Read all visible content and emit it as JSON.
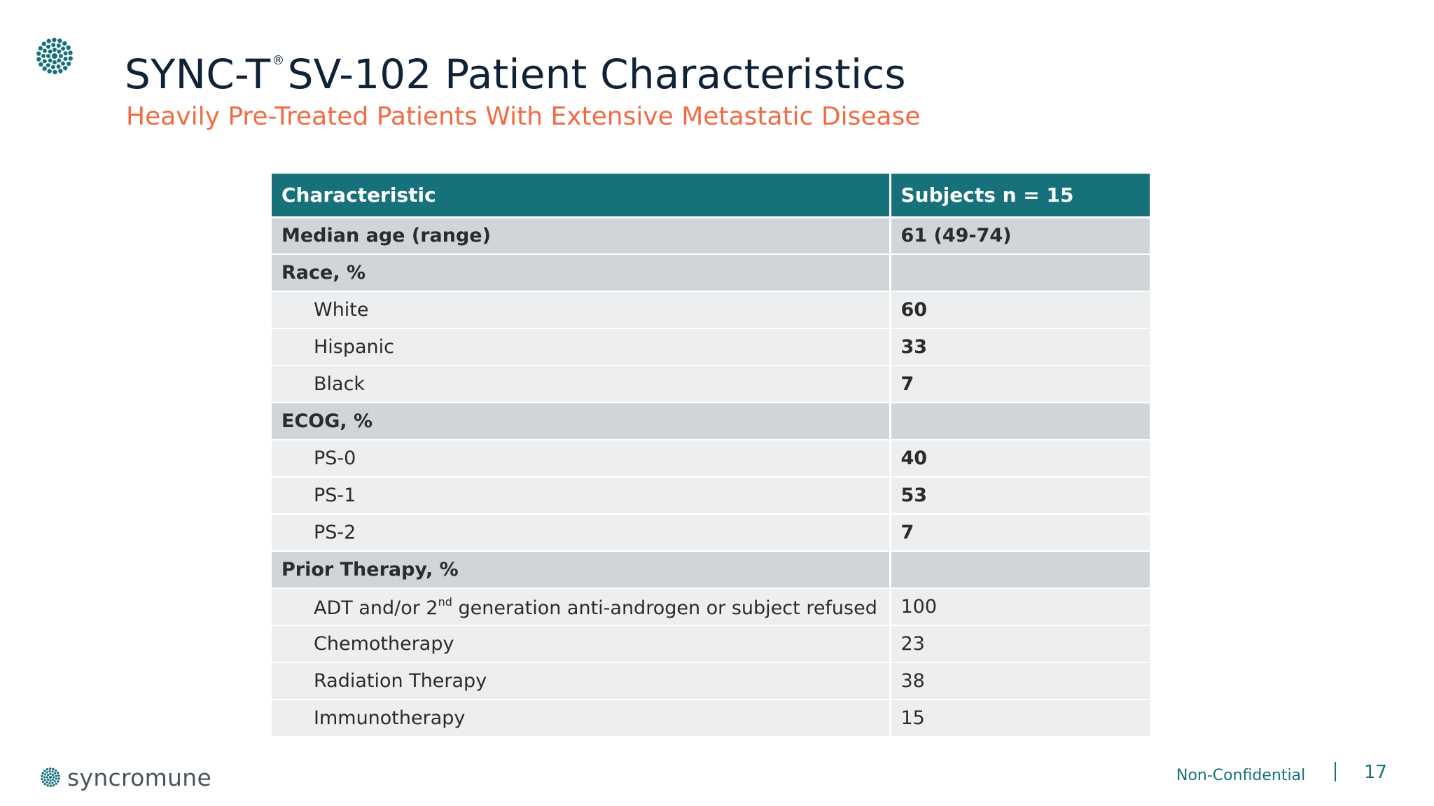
{
  "header": {
    "title_main": "SYNC-T",
    "title_reg": "®",
    "title_rest": "SV-102 Patient Characteristics",
    "subtitle": "Heavily Pre-Treated Patients With Extensive Metastatic Disease"
  },
  "table": {
    "columns": [
      "Characteristic",
      "Subjects n = 15"
    ],
    "rows": [
      {
        "label": "Median age (range)",
        "value": "61 (49-74)"
      },
      {
        "label": "Race, %",
        "value": ""
      },
      {
        "label": "White",
        "value": "60"
      },
      {
        "label": "Hispanic",
        "value": "33"
      },
      {
        "label": "Black",
        "value": "7"
      },
      {
        "label": "ECOG, %",
        "value": ""
      },
      {
        "label": "PS-0",
        "value": "40"
      },
      {
        "label": "PS-1",
        "value": "53"
      },
      {
        "label": "PS-2",
        "value": "7"
      },
      {
        "label": "Prior Therapy, %",
        "value": ""
      },
      {
        "label_pre": "ADT and/or 2",
        "label_sup": "nd",
        "label_post": " generation anti-androgen or subject refused",
        "value": "100"
      },
      {
        "label": "Chemotherapy",
        "value": "23"
      },
      {
        "label": "Radiation Therapy",
        "value": "38"
      },
      {
        "label": "Immunotherapy",
        "value": "15"
      }
    ]
  },
  "footer": {
    "brand": "syncromune",
    "note": "Non-Confidential",
    "page_number": "17"
  },
  "colors": {
    "brand_teal": "#17717a",
    "accent_orange": "#f26b43",
    "title_navy": "#0f2236"
  },
  "icons": {
    "logo": "dotted-flower-logo-icon"
  }
}
